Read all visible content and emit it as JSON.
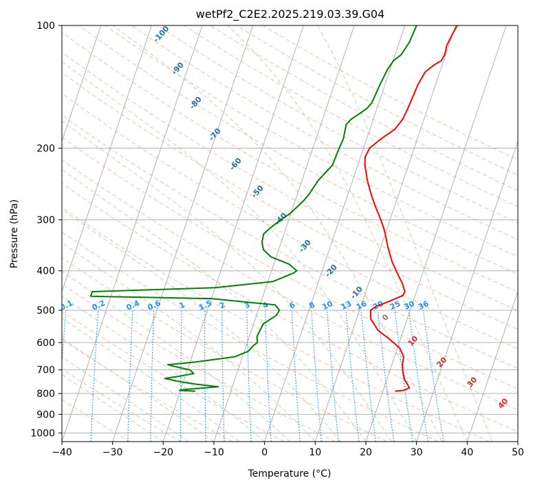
{
  "chart_data": {
    "type": "line",
    "title": "wetPf2_C2E2.2025.219.03.39.G04",
    "xlabel": "Temperature (°C)",
    "ylabel": "Pressure (hPa)",
    "xlim": [
      -40,
      50
    ],
    "ylim": [
      1050,
      100
    ],
    "y_scale": "log",
    "grid": true,
    "x_ticks": [
      -40,
      -30,
      -20,
      -10,
      0,
      10,
      20,
      30,
      40,
      50
    ],
    "y_ticks": [
      1000,
      900,
      800,
      700,
      600,
      500,
      400,
      300,
      200,
      100
    ],
    "series": [
      {
        "color": "#ff0000",
        "points": [
          [
            22.4,
            790
          ],
          [
            24.2,
            785
          ],
          [
            25.0,
            775
          ],
          [
            24.4,
            760
          ],
          [
            23.5,
            740
          ],
          [
            22.6,
            705
          ],
          [
            22.1,
            680
          ],
          [
            21.8,
            650
          ],
          [
            20.5,
            620
          ],
          [
            18.0,
            590
          ],
          [
            15.0,
            560
          ],
          [
            12.8,
            525
          ],
          [
            12.2,
            500
          ],
          [
            12.9,
            490
          ],
          [
            15.3,
            475
          ],
          [
            17.6,
            460
          ],
          [
            17.7,
            450
          ],
          [
            16.7,
            430
          ],
          [
            15.3,
            410
          ],
          [
            13.2,
            380
          ],
          [
            11.4,
            350
          ],
          [
            9.7,
            320
          ],
          [
            8.2,
            300
          ],
          [
            6.4,
            280
          ],
          [
            4.6,
            260
          ],
          [
            2.9,
            240
          ],
          [
            1.4,
            220
          ],
          [
            0.9,
            210
          ],
          [
            1.2,
            200
          ],
          [
            2.8,
            190
          ],
          [
            4.9,
            180
          ],
          [
            5.8,
            170
          ],
          [
            6.1,
            160
          ],
          [
            6.3,
            150
          ],
          [
            6.5,
            140
          ],
          [
            7.1,
            130
          ],
          [
            8.4,
            125
          ],
          [
            9.5,
            122
          ],
          [
            9.8,
            118
          ],
          [
            9.6,
            112
          ],
          [
            9.9,
            106
          ],
          [
            10.3,
            100
          ]
        ]
      },
      {
        "color": "#008000",
        "points": [
          [
            -17.0,
            790
          ],
          [
            -20.2,
            786
          ],
          [
            -19.2,
            782
          ],
          [
            -12.8,
            770
          ],
          [
            -17.1,
            760
          ],
          [
            -20.3,
            750
          ],
          [
            -23.9,
            735
          ],
          [
            -21.0,
            725
          ],
          [
            -18.5,
            715
          ],
          [
            -19.5,
            700
          ],
          [
            -22.0,
            690
          ],
          [
            -24.2,
            680
          ],
          [
            -19.0,
            670
          ],
          [
            -11.5,
            650
          ],
          [
            -9.2,
            630
          ],
          [
            -8.6,
            610
          ],
          [
            -8.0,
            600
          ],
          [
            -8.5,
            580
          ],
          [
            -8.3,
            560
          ],
          [
            -8.1,
            540
          ],
          [
            -6.1,
            515
          ],
          [
            -5.8,
            500
          ],
          [
            -7.0,
            485
          ],
          [
            -20.0,
            468
          ],
          [
            -44.0,
            462
          ],
          [
            -44.0,
            450
          ],
          [
            -20.0,
            440
          ],
          [
            -9.0,
            425
          ],
          [
            -5.5,
            405
          ],
          [
            -5.0,
            400
          ],
          [
            -7.0,
            385
          ],
          [
            -11.0,
            370
          ],
          [
            -13.0,
            355
          ],
          [
            -13.8,
            340
          ],
          [
            -14.0,
            325
          ],
          [
            -13.2,
            315
          ],
          [
            -11.6,
            300
          ],
          [
            -10.2,
            290
          ],
          [
            -8.4,
            270
          ],
          [
            -7.7,
            260
          ],
          [
            -6.8,
            240
          ],
          [
            -5.0,
            220
          ],
          [
            -4.8,
            200
          ],
          [
            -4.6,
            190
          ],
          [
            -5.0,
            175
          ],
          [
            -4.4,
            170
          ],
          [
            -3.2,
            165
          ],
          [
            -2.0,
            160
          ],
          [
            -1.4,
            155
          ],
          [
            -1.0,
            140
          ],
          [
            -0.5,
            128
          ],
          [
            0.1,
            122
          ],
          [
            1.2,
            118
          ],
          [
            2.0,
            110
          ],
          [
            2.3,
            100
          ]
        ]
      }
    ],
    "dry_adiabat_labels": [
      "-100",
      "-90",
      "-80",
      "-70",
      "-60",
      "-50",
      "-40",
      "-30",
      "-20",
      "-10"
    ],
    "moist_adiabat_labels": [
      "0",
      "10",
      "20",
      "30",
      "40"
    ],
    "mixing_ratio_labels": [
      "0.1",
      "0.2",
      "0.4",
      "0.6",
      "1",
      "1.5",
      "2",
      "3",
      "4",
      "6",
      "8",
      "10",
      "13",
      "16",
      "20",
      "25",
      "30",
      "36"
    ],
    "colors": {
      "isotherm": "#b0b0b0",
      "dry_adiabat": "#f4a582",
      "moist_adiabat": "#9fd39f",
      "mixing_ratio": "#1e90ff",
      "dry_label": "#1f6fa5",
      "moist_label": "#d62728",
      "isobar": "#b0b0b0"
    }
  }
}
